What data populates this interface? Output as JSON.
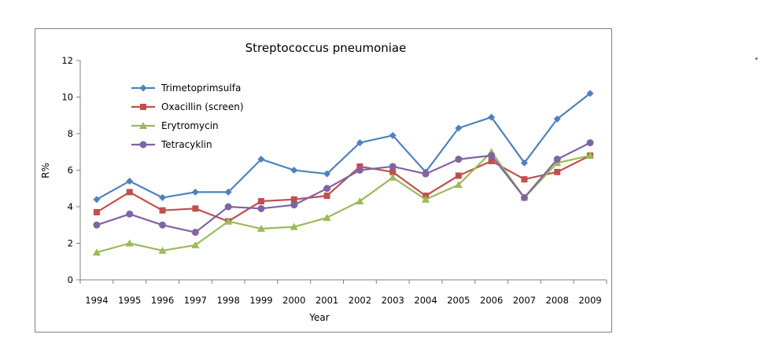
{
  "chart_data": {
    "type": "line",
    "title": "Streptococcus pneumoniae",
    "xlabel": "Year",
    "ylabel": "R%",
    "ylim": [
      0,
      12
    ],
    "yticks": [
      "0",
      "2",
      "4",
      "6",
      "8",
      "10",
      "12"
    ],
    "categories": [
      "1994",
      "1995",
      "1996",
      "1997",
      "1998",
      "1999",
      "2000",
      "2001",
      "2002",
      "2003",
      "2004",
      "2005",
      "2006",
      "2007",
      "2008",
      "2009"
    ],
    "legend_position": "top-left",
    "grid": false,
    "series": [
      {
        "name": "Trimetoprimsulfa",
        "color": "#4f81bd",
        "marker": "diamond",
        "values": [
          4.4,
          5.4,
          4.5,
          4.8,
          4.8,
          6.6,
          6.0,
          5.8,
          7.5,
          7.9,
          5.9,
          8.3,
          8.9,
          6.4,
          8.8,
          10.2
        ]
      },
      {
        "name": "Oxacillin (screen)",
        "color": "#c0504d",
        "marker": "square",
        "values": [
          3.7,
          4.8,
          3.8,
          3.9,
          3.2,
          4.3,
          4.4,
          4.6,
          6.2,
          5.9,
          4.6,
          5.7,
          6.5,
          5.5,
          5.9,
          6.8
        ]
      },
      {
        "name": "Erytromycin",
        "color": "#9bbb59",
        "marker": "triangle",
        "values": [
          1.5,
          2.0,
          1.6,
          1.9,
          3.2,
          2.8,
          2.9,
          3.4,
          4.3,
          5.6,
          4.4,
          5.2,
          7.0,
          4.5,
          6.4,
          6.8
        ]
      },
      {
        "name": "Tetracyklin",
        "color": "#8064a2",
        "marker": "circle",
        "values": [
          3.0,
          3.6,
          3.0,
          2.6,
          4.0,
          3.9,
          4.1,
          5.0,
          6.0,
          6.2,
          5.8,
          6.6,
          6.8,
          4.5,
          6.6,
          7.5
        ]
      }
    ]
  }
}
